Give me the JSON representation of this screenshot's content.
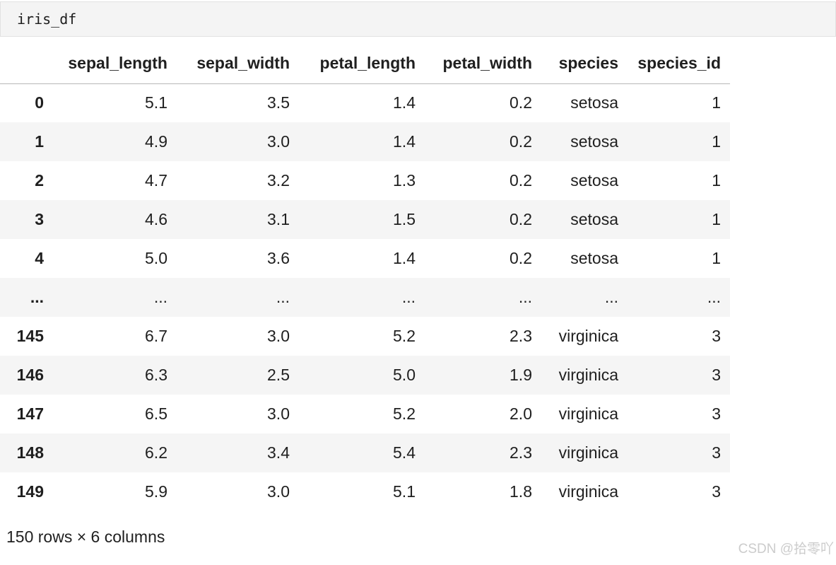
{
  "code_cell": {
    "source": "iris_df"
  },
  "table": {
    "index_header": "",
    "columns": [
      "sepal_length",
      "sepal_width",
      "petal_length",
      "petal_width",
      "species",
      "species_id"
    ],
    "rows": [
      {
        "index": "0",
        "cells": [
          "5.1",
          "3.5",
          "1.4",
          "0.2",
          "setosa",
          "1"
        ]
      },
      {
        "index": "1",
        "cells": [
          "4.9",
          "3.0",
          "1.4",
          "0.2",
          "setosa",
          "1"
        ]
      },
      {
        "index": "2",
        "cells": [
          "4.7",
          "3.2",
          "1.3",
          "0.2",
          "setosa",
          "1"
        ]
      },
      {
        "index": "3",
        "cells": [
          "4.6",
          "3.1",
          "1.5",
          "0.2",
          "setosa",
          "1"
        ]
      },
      {
        "index": "4",
        "cells": [
          "5.0",
          "3.6",
          "1.4",
          "0.2",
          "setosa",
          "1"
        ]
      },
      {
        "index": "...",
        "cells": [
          "...",
          "...",
          "...",
          "...",
          "...",
          "..."
        ]
      },
      {
        "index": "145",
        "cells": [
          "6.7",
          "3.0",
          "5.2",
          "2.3",
          "virginica",
          "3"
        ]
      },
      {
        "index": "146",
        "cells": [
          "6.3",
          "2.5",
          "5.0",
          "1.9",
          "virginica",
          "3"
        ]
      },
      {
        "index": "147",
        "cells": [
          "6.5",
          "3.0",
          "5.2",
          "2.0",
          "virginica",
          "3"
        ]
      },
      {
        "index": "148",
        "cells": [
          "6.2",
          "3.4",
          "5.4",
          "2.3",
          "virginica",
          "3"
        ]
      },
      {
        "index": "149",
        "cells": [
          "5.9",
          "3.0",
          "5.1",
          "1.8",
          "virginica",
          "3"
        ]
      }
    ],
    "summary": "150 rows × 6 columns"
  },
  "watermark": "CSDN @拾零吖",
  "colors": {
    "text": "#1f1f1f",
    "stripe": "#f5f5f5",
    "cell_bg": "#f4f4f4",
    "cell_border": "#e2e2e2",
    "header_border": "#b7b7b7",
    "watermark": "#cccccc"
  }
}
